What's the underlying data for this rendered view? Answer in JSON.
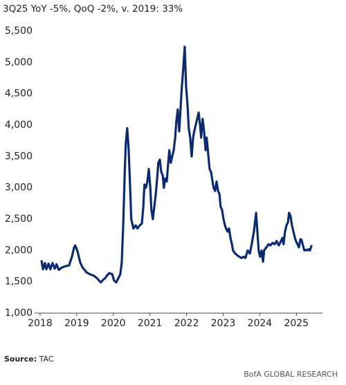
{
  "chart_data": {
    "type": "line",
    "title": "3Q25 YoY -5%, QoQ -2%, v. 2019: 33%",
    "source_label": "Source:",
    "source": "TAC",
    "footer": "BofA GLOBAL RESEARCH",
    "color": "#0c2a72",
    "xlim": [
      2017.85,
      2025.7
    ],
    "xticks": [
      2018,
      2019,
      2020,
      2021,
      2022,
      2023,
      2024,
      2025
    ],
    "ylim": [
      1000,
      5500
    ],
    "yticks": [
      {
        "value": 1000,
        "label": "1,000"
      },
      {
        "value": 1500,
        "label": "1,500"
      },
      {
        "value": 2000,
        "label": "2,000"
      },
      {
        "value": 2500,
        "label": "2,500"
      },
      {
        "value": 3000,
        "label": "3,000"
      },
      {
        "value": 3500,
        "label": "3,500"
      },
      {
        "value": 4000,
        "label": "4,000"
      },
      {
        "value": 4500,
        "label": "4,500"
      },
      {
        "value": 5000,
        "label": "5,000"
      },
      {
        "value": 5500,
        "label": "5,500"
      }
    ],
    "grid": false,
    "x": [
      2018.04,
      2018.08,
      2018.13,
      2018.17,
      2018.23,
      2018.28,
      2018.34,
      2018.4,
      2018.45,
      2018.51,
      2018.6,
      2018.7,
      2018.79,
      2018.87,
      2018.93,
      2018.96,
      2019.02,
      2019.1,
      2019.17,
      2019.27,
      2019.36,
      2019.46,
      2019.55,
      2019.61,
      2019.66,
      2019.72,
      2019.78,
      2019.83,
      2019.89,
      2019.97,
      2020.02,
      2020.08,
      2020.14,
      2020.19,
      2020.23,
      2020.27,
      2020.31,
      2020.34,
      2020.38,
      2020.42,
      2020.46,
      2020.49,
      2020.55,
      2020.61,
      2020.66,
      2020.72,
      2020.78,
      2020.82,
      2020.85,
      2020.89,
      2020.93,
      2020.97,
      2021.01,
      2021.04,
      2021.08,
      2021.12,
      2021.16,
      2021.19,
      2021.23,
      2021.27,
      2021.31,
      2021.35,
      2021.38,
      2021.42,
      2021.46,
      2021.5,
      2021.53,
      2021.57,
      2021.61,
      2021.65,
      2021.69,
      2021.72,
      2021.76,
      2021.8,
      2021.84,
      2021.87,
      2021.91,
      2021.95,
      2021.99,
      2022.03,
      2022.06,
      2022.1,
      2022.14,
      2022.18,
      2022.21,
      2022.25,
      2022.29,
      2022.33,
      2022.37,
      2022.4,
      2022.44,
      2022.48,
      2022.52,
      2022.55,
      2022.59,
      2022.63,
      2022.67,
      2022.71,
      2022.74,
      2022.78,
      2022.82,
      2022.86,
      2022.9,
      2022.93,
      2022.97,
      2023.01,
      2023.05,
      2023.08,
      2023.12,
      2023.16,
      2023.2,
      2023.24,
      2023.27,
      2023.33,
      2023.39,
      2023.44,
      2023.5,
      2023.56,
      2023.61,
      2023.67,
      2023.73,
      2023.78,
      2023.84,
      2023.9,
      2023.93,
      2023.97,
      2024.01,
      2024.05,
      2024.09,
      2024.12,
      2024.18,
      2024.24,
      2024.29,
      2024.35,
      2024.41,
      2024.46,
      2024.52,
      2024.58,
      2024.62,
      2024.65,
      2024.69,
      2024.73,
      2024.77,
      2024.8,
      2024.84,
      2024.88,
      2024.92,
      2024.96,
      2024.99,
      2025.03,
      2025.07,
      2025.11,
      2025.14,
      2025.18,
      2025.22,
      2025.26,
      2025.3,
      2025.33,
      2025.37,
      2025.41
    ],
    "values": [
      1830,
      1700,
      1800,
      1700,
      1790,
      1700,
      1800,
      1710,
      1780,
      1690,
      1730,
      1750,
      1760,
      1900,
      2050,
      2080,
      1990,
      1800,
      1720,
      1650,
      1620,
      1600,
      1560,
      1520,
      1490,
      1530,
      1560,
      1600,
      1640,
      1620,
      1520,
      1490,
      1560,
      1620,
      1800,
      2400,
      3200,
      3700,
      3950,
      3600,
      3000,
      2500,
      2350,
      2400,
      2350,
      2400,
      2430,
      2700,
      3050,
      3000,
      3100,
      3300,
      3000,
      2650,
      2500,
      2700,
      2900,
      3100,
      3400,
      3450,
      3250,
      3200,
      3000,
      3150,
      3100,
      3400,
      3600,
      3400,
      3500,
      3600,
      3800,
      4050,
      4250,
      3900,
      4300,
      4600,
      4900,
      5250,
      4600,
      4300,
      3950,
      3800,
      3500,
      3800,
      3900,
      4000,
      4100,
      4200,
      4000,
      3800,
      4100,
      3900,
      3600,
      3800,
      3550,
      3300,
      3250,
      3100,
      3000,
      2950,
      3100,
      2950,
      2900,
      2700,
      2650,
      2500,
      2400,
      2350,
      2300,
      2350,
      2200,
      2100,
      2000,
      1950,
      1920,
      1900,
      1880,
      1900,
      1880,
      2000,
      1950,
      2100,
      2300,
      2600,
      2350,
      2000,
      1900,
      2000,
      1820,
      2000,
      2050,
      2100,
      2080,
      2120,
      2100,
      2150,
      2080,
      2150,
      2200,
      2100,
      2300,
      2400,
      2450,
      2600,
      2550,
      2400,
      2300,
      2200,
      2150,
      2100,
      2050,
      2180,
      2170,
      2080,
      2000,
      2010,
      2000,
      2020,
      2000,
      2070
    ]
  }
}
